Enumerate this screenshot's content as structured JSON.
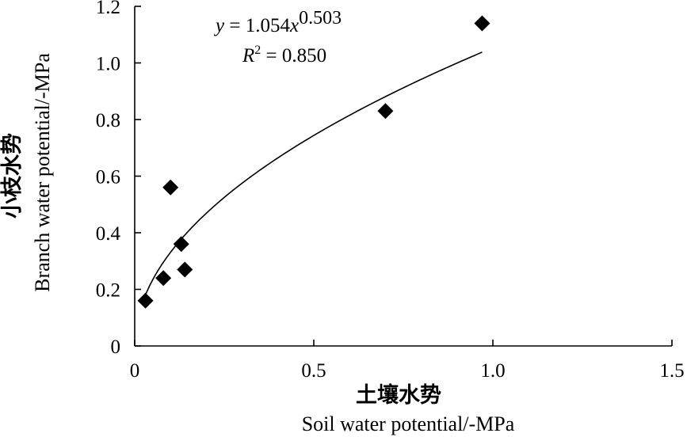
{
  "chart_data": {
    "type": "scatter",
    "title": "",
    "xlabel_cn": "土壤水势",
    "xlabel_en": "Soil water potential/-MPa",
    "ylabel_cn": "小枝水势",
    "ylabel_en": "Branch  water  potential/-MPa",
    "xlim": [
      0,
      1.5
    ],
    "ylim": [
      0,
      1.2
    ],
    "xticks": [
      0,
      0.5,
      1.0,
      1.5
    ],
    "xtick_labels": [
      "0",
      "0.5",
      "1.0",
      "1.5"
    ],
    "yticks": [
      0,
      0.2,
      0.4,
      0.6,
      0.8,
      1.0,
      1.2
    ],
    "ytick_labels": [
      "0",
      "0.2",
      "0.4",
      "0.6",
      "0.8",
      "1.0",
      "1.2"
    ],
    "grid": false,
    "legend": "none",
    "points": [
      {
        "x": 0.03,
        "y": 0.16
      },
      {
        "x": 0.08,
        "y": 0.24
      },
      {
        "x": 0.1,
        "y": 0.56
      },
      {
        "x": 0.13,
        "y": 0.36
      },
      {
        "x": 0.14,
        "y": 0.27
      },
      {
        "x": 0.7,
        "y": 0.83
      },
      {
        "x": 0.97,
        "y": 1.14
      }
    ],
    "marker": "diamond",
    "marker_color": "#000000",
    "fit": {
      "type": "power",
      "a": 1.054,
      "b": 0.503,
      "x_range": [
        0.03,
        0.97
      ],
      "equation_y": "y",
      "equation_mid": " = 1.054",
      "equation_x": "x",
      "equation_exp": "0.503",
      "r2_label": "R",
      "r2_sup": "2",
      "r2_value": " = 0.850"
    }
  }
}
